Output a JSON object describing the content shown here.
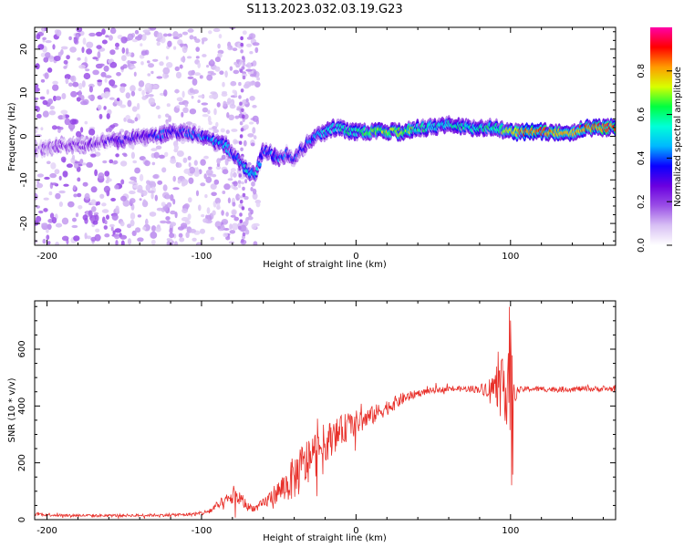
{
  "figure": {
    "title": "S113.2023.032.03.19.G23"
  },
  "colors": {
    "snr_line": "#e8302a",
    "colormap": [
      "#ffffff",
      "#d8c0f4",
      "#9a4ee6",
      "#6a00e0",
      "#0a00ff",
      "#00b8ff",
      "#00ffd8",
      "#00ff40",
      "#d8ff00",
      "#ff9a00",
      "#ff0000",
      "#ff00a8"
    ]
  },
  "chart_data": [
    {
      "type": "heatmap",
      "xlabel": "Height of straight line (km)",
      "ylabel": "Frequency (Hz)",
      "xlim": [
        -208,
        168
      ],
      "ylim": [
        -25,
        25
      ],
      "x_ticks": [
        -200,
        -100,
        0,
        100
      ],
      "x_tick_labels": [
        "-200",
        "-100",
        "0",
        "100"
      ],
      "y_ticks": [
        -20,
        -10,
        0,
        10,
        20
      ],
      "y_tick_labels": [
        "-20",
        "-10",
        "0",
        "10",
        "20"
      ],
      "grid": false,
      "ridge": {
        "description_free_points": true,
        "x": [
          -205,
          -190,
          -175,
          -160,
          -150,
          -140,
          -130,
          -120,
          -110,
          -100,
          -92,
          -85,
          -80,
          -75,
          -70,
          -65,
          -60,
          -55,
          -50,
          -45,
          -40,
          -35,
          -30,
          -25,
          -20,
          -15,
          -10,
          -5,
          0,
          10,
          20,
          30,
          40,
          50,
          60,
          70,
          80,
          90,
          100,
          110,
          120,
          130,
          140,
          150,
          160,
          168
        ],
        "freq": [
          -3,
          -2,
          -2,
          -1,
          -1,
          0,
          0,
          1,
          1,
          0,
          -1,
          -2,
          -4,
          -6,
          -8,
          -9,
          -3,
          -4,
          -5,
          -4,
          -5,
          -3,
          -1,
          0,
          1,
          2,
          2,
          1,
          1,
          1,
          1,
          1,
          2,
          2,
          3,
          2,
          2,
          2,
          1,
          1,
          1,
          1,
          1,
          2,
          2,
          2
        ],
        "amplitude": [
          0.15,
          0.2,
          0.2,
          0.25,
          0.3,
          0.3,
          0.35,
          0.35,
          0.35,
          0.4,
          0.45,
          0.45,
          0.4,
          0.45,
          0.5,
          0.5,
          0.35,
          0.4,
          0.4,
          0.35,
          0.35,
          0.35,
          0.4,
          0.45,
          0.5,
          0.55,
          0.55,
          0.55,
          0.55,
          0.65,
          0.7,
          0.7,
          0.6,
          0.55,
          0.55,
          0.55,
          0.55,
          0.6,
          0.75,
          0.85,
          0.85,
          0.8,
          0.8,
          0.85,
          0.85,
          0.85
        ]
      }
    },
    {
      "type": "line",
      "xlabel": "Height of straight line (km)",
      "ylabel": "SNR (10 * v/v)",
      "xlim": [
        -208,
        168
      ],
      "ylim": [
        0,
        770
      ],
      "x_ticks": [
        -200,
        -100,
        0,
        100
      ],
      "x_tick_labels": [
        "-200",
        "-100",
        "0",
        "100"
      ],
      "y_ticks": [
        0,
        200,
        400,
        600
      ],
      "y_tick_labels": [
        "0",
        "200",
        "400",
        "600"
      ],
      "grid": false,
      "series": [
        {
          "x": [
            -208,
            -200,
            -190,
            -180,
            -170,
            -160,
            -150,
            -140,
            -130,
            -120,
            -110,
            -100,
            -95,
            -90,
            -85,
            -80,
            -75,
            -70,
            -65,
            -60,
            -55,
            -50,
            -45,
            -40,
            -35,
            -30,
            -25,
            -20,
            -15,
            -10,
            -5,
            0,
            5,
            10,
            15,
            20,
            25,
            30,
            40,
            50,
            60,
            70,
            80,
            85,
            90,
            95,
            98,
            100,
            102,
            105,
            110,
            120,
            130,
            140,
            150,
            160,
            168
          ],
          "y": [
            20,
            18,
            15,
            15,
            14,
            14,
            15,
            15,
            16,
            16,
            18,
            22,
            30,
            45,
            60,
            80,
            75,
            45,
            40,
            55,
            80,
            100,
            120,
            150,
            180,
            210,
            240,
            270,
            290,
            310,
            330,
            340,
            350,
            365,
            380,
            395,
            410,
            425,
            445,
            455,
            460,
            460,
            460,
            462,
            465,
            470,
            500,
            520,
            440,
            455,
            460,
            460,
            458,
            460,
            460,
            460,
            460
          ],
          "noise": [
            6,
            6,
            5,
            5,
            5,
            5,
            5,
            5,
            5,
            5,
            6,
            8,
            12,
            20,
            25,
            30,
            30,
            15,
            12,
            20,
            30,
            40,
            60,
            80,
            90,
            90,
            80,
            70,
            60,
            55,
            50,
            45,
            40,
            35,
            30,
            28,
            25,
            22,
            12,
            10,
            10,
            10,
            15,
            30,
            60,
            100,
            180,
            220,
            40,
            12,
            10,
            10,
            10,
            10,
            10,
            10,
            10
          ]
        }
      ]
    }
  ],
  "colorbar": {
    "label": "Normalized spectral amplitude",
    "range": [
      0.0,
      1.0
    ],
    "ticks": [
      0.0,
      0.2,
      0.4,
      0.6,
      0.8
    ],
    "tick_labels": [
      "0.0",
      "0.2",
      "0.4",
      "0.6",
      "0.8"
    ]
  }
}
